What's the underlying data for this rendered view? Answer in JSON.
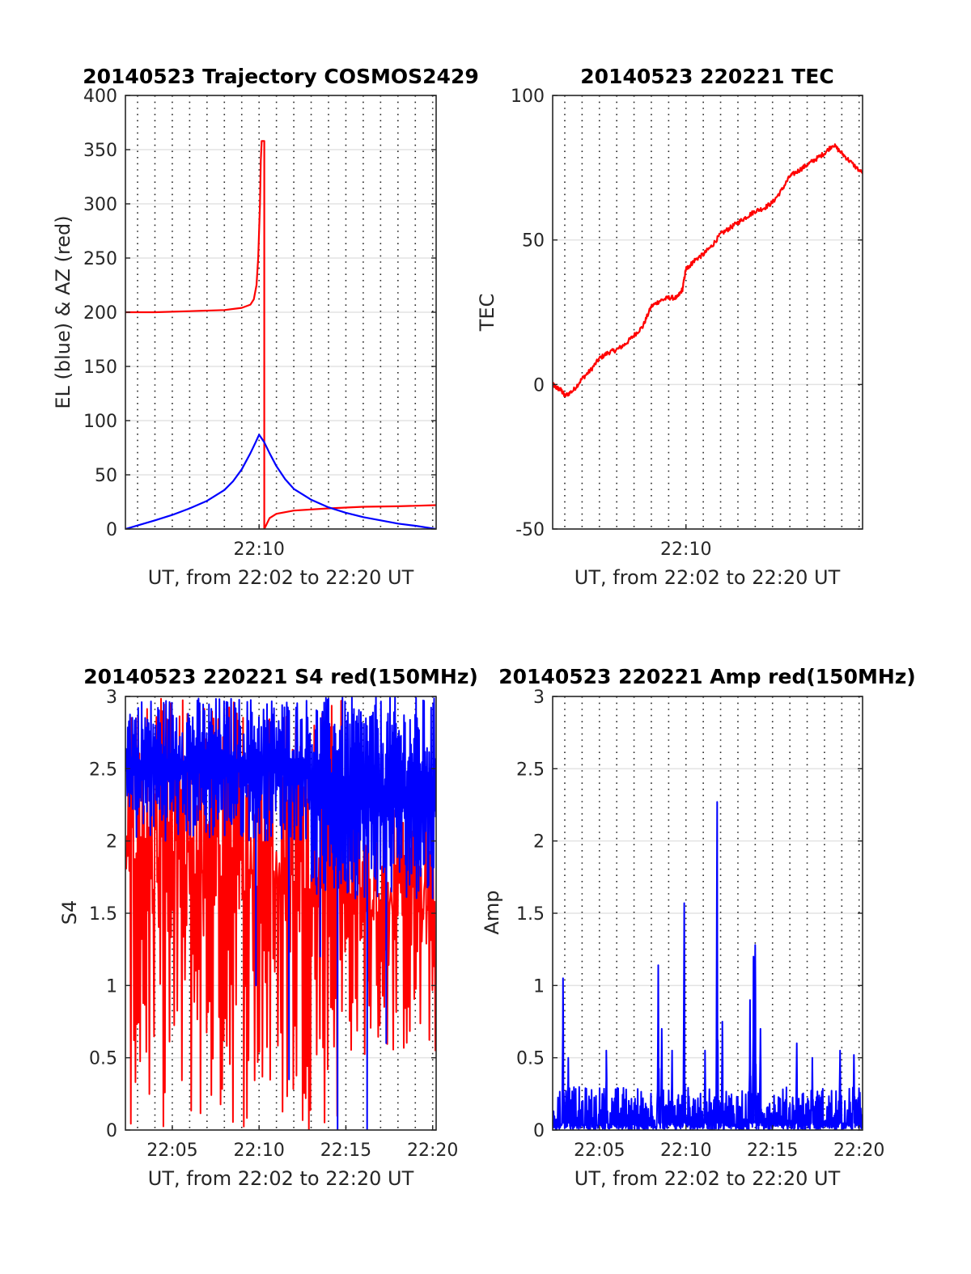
{
  "chart_data": [
    {
      "type": "line",
      "title": "20140523 Trajectory COSMOS2429",
      "xlabel": "UT, from 22:02 to 22:20 UT",
      "ylabel": "EL (blue) & AZ (red)",
      "xlim_min": [
        122.3,
        140.2
      ],
      "ylim": [
        0,
        400
      ],
      "xticks": [
        {
          "value": 130,
          "label": "22:10"
        }
      ],
      "yticks": [
        0,
        50,
        100,
        150,
        200,
        250,
        300,
        350,
        400
      ],
      "grid": {
        "vertical_minutes_dotted": true,
        "horizontal": true
      },
      "series": [
        {
          "color": "#ff0000",
          "x": [
            122.3,
            124,
            126,
            128,
            129,
            129.5,
            129.7,
            129.85,
            129.95,
            130.05,
            130.1,
            130.15,
            130.3,
            130.3,
            130.6,
            131,
            132,
            134,
            136,
            138,
            140.2
          ],
          "y": [
            200,
            200,
            201,
            202,
            204,
            207,
            212,
            225,
            250,
            300,
            340,
            358,
            358,
            0,
            10,
            14,
            17,
            19,
            20.5,
            21,
            22
          ]
        },
        {
          "color": "#0000ff",
          "x": [
            122.3,
            124,
            125,
            126,
            127,
            128,
            128.5,
            129,
            129.5,
            129.8,
            130,
            130.3,
            130.6,
            131,
            131.5,
            132,
            133,
            134,
            135,
            136,
            137,
            138,
            139,
            140.2
          ],
          "y": [
            0,
            8,
            13,
            19,
            26,
            36,
            44,
            55,
            70,
            80,
            87,
            80,
            70,
            58,
            46,
            37,
            27,
            20,
            15,
            11,
            8,
            5,
            3,
            0
          ]
        }
      ]
    },
    {
      "type": "line",
      "title": "20140523 220221 TEC",
      "xlabel": "UT, from 22:02 to 22:20 UT",
      "ylabel": "TEC",
      "xlim_min": [
        122.3,
        140.2
      ],
      "ylim": [
        -50,
        100
      ],
      "xticks": [
        {
          "value": 130,
          "label": "22:10"
        }
      ],
      "yticks": [
        -50,
        0,
        50,
        100
      ],
      "grid": {
        "vertical_minutes_dotted": true,
        "horizontal": true
      },
      "series": [
        {
          "color": "#ff0000",
          "x": [
            122.3,
            122.5,
            122.8,
            123,
            123.5,
            124,
            124.5,
            125,
            125.5,
            126,
            126.5,
            127,
            127.5,
            128,
            128.5,
            129,
            129.5,
            129.8,
            130,
            130.2,
            130.5,
            131,
            131.5,
            132,
            132.5,
            133,
            133.5,
            134,
            134.5,
            135,
            135.5,
            136,
            136.5,
            137,
            137.5,
            138,
            138.5,
            139,
            139.5,
            140.2
          ],
          "y": [
            0,
            -1,
            -2,
            -4,
            -2,
            2,
            5,
            9,
            11,
            12,
            14,
            17,
            20,
            27,
            29,
            30,
            30,
            33,
            40,
            41,
            43,
            45,
            48,
            52,
            54,
            56,
            58,
            60,
            61,
            63,
            67,
            72,
            74,
            76,
            78,
            80,
            83,
            80,
            77,
            73
          ]
        }
      ]
    },
    {
      "type": "line",
      "title": "20140523 220221 S4 red(150MHz)",
      "xlabel": "UT, from 22:02 to 22:20 UT",
      "ylabel": "S4",
      "xlim_min": [
        122.3,
        140.2
      ],
      "ylim": [
        0,
        3
      ],
      "xticks": [
        {
          "value": 125,
          "label": "22:05"
        },
        {
          "value": 130,
          "label": "22:10"
        },
        {
          "value": 135,
          "label": "22:15"
        },
        {
          "value": 140,
          "label": "22:20"
        }
      ],
      "yticks": [
        0,
        0.5,
        1,
        1.5,
        2,
        2.5,
        3
      ],
      "grid": {
        "vertical_minutes_dotted": true,
        "horizontal": true
      },
      "series": [
        {
          "color": "#ff0000",
          "style": "dense-oscillation",
          "segments": [
            {
              "x0": 122.3,
              "x1": 133.0,
              "lo": 0,
              "hi": 3,
              "spikes": 120
            },
            {
              "x0": 133.0,
              "x1": 135.0,
              "lo": 0,
              "hi": 3,
              "spikes": 22
            },
            {
              "x0": 135.0,
              "x1": 140.2,
              "lo": 0.5,
              "hi": 2.3,
              "spikes": 60
            }
          ]
        },
        {
          "color": "#0000ff",
          "style": "dense-oscillation",
          "segments": [
            {
              "x0": 122.3,
              "x1": 133.0,
              "lo": 2.0,
              "hi": 3,
              "spikes": 160
            },
            {
              "x0": 133.0,
              "x1": 135.0,
              "lo": 1.6,
              "hi": 3,
              "spikes": 40
            },
            {
              "x0": 135.0,
              "x1": 140.2,
              "lo": 1.6,
              "hi": 3,
              "spikes": 90
            }
          ],
          "dips": [
            {
              "x": 129.8,
              "y": 1.0
            },
            {
              "x": 131.7,
              "y": 0.35
            },
            {
              "x": 133.5,
              "y": 1.2
            },
            {
              "x": 134.5,
              "y": 0.0
            },
            {
              "x": 136.2,
              "y": 0.0
            },
            {
              "x": 137.3,
              "y": 0.6
            }
          ]
        }
      ]
    },
    {
      "type": "line",
      "title": "20140523 220221 Amp red(150MHz)",
      "xlabel": "UT, from 22:02 to 22:20 UT",
      "ylabel": "Amp",
      "xlim_min": [
        122.3,
        140.2
      ],
      "ylim": [
        0,
        3
      ],
      "xticks": [
        {
          "value": 125,
          "label": "22:05"
        },
        {
          "value": 130,
          "label": "22:10"
        },
        {
          "value": 135,
          "label": "22:15"
        },
        {
          "value": 140,
          "label": "22:20"
        }
      ],
      "yticks": [
        0,
        0.5,
        1,
        1.5,
        2,
        2.5,
        3
      ],
      "grid": {
        "vertical_minutes_dotted": true,
        "horizontal": true
      },
      "series": [
        {
          "color": "#0000ff",
          "style": "noise-with-peaks",
          "baseline_hi": 0.3,
          "peaks": [
            {
              "x": 122.9,
              "y": 1.05
            },
            {
              "x": 123.2,
              "y": 0.5
            },
            {
              "x": 125.4,
              "y": 0.55
            },
            {
              "x": 128.4,
              "y": 1.14
            },
            {
              "x": 128.6,
              "y": 0.7
            },
            {
              "x": 129.2,
              "y": 0.55
            },
            {
              "x": 129.9,
              "y": 1.57
            },
            {
              "x": 131.1,
              "y": 0.55
            },
            {
              "x": 131.8,
              "y": 2.27
            },
            {
              "x": 132.1,
              "y": 0.75
            },
            {
              "x": 133.7,
              "y": 0.9
            },
            {
              "x": 133.9,
              "y": 1.2
            },
            {
              "x": 134.0,
              "y": 1.28
            },
            {
              "x": 134.3,
              "y": 0.7
            },
            {
              "x": 136.4,
              "y": 0.6
            },
            {
              "x": 137.3,
              "y": 0.5
            },
            {
              "x": 138.9,
              "y": 0.55
            },
            {
              "x": 139.7,
              "y": 0.52
            }
          ]
        }
      ]
    }
  ]
}
